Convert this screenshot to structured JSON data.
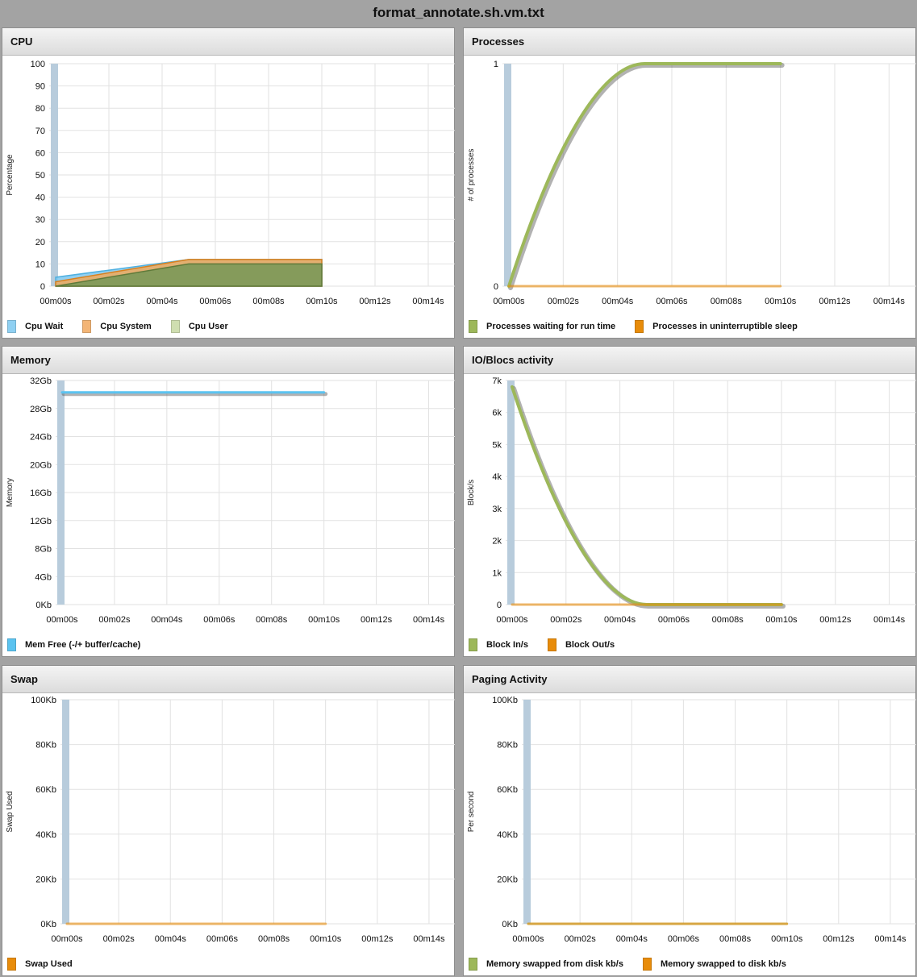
{
  "window": {
    "title": "format_annotate.sh.vm.txt"
  },
  "colors": {
    "cpu_wait": "#7ec8f0",
    "cpu_system": "#f0a95a",
    "cpu_user": "#c2d6a0",
    "green": "#9db85a",
    "orange": "#e88c0a",
    "blue": "#5bc3f0",
    "start_bar": "#b8ccdc"
  },
  "chart_data": [
    {
      "type": "area",
      "title": "CPU",
      "ylabel": "Percentage",
      "xlabel": "",
      "ylim": [
        0,
        100
      ],
      "yticks": [
        "0",
        "10",
        "20",
        "30",
        "40",
        "50",
        "60",
        "70",
        "80",
        "90",
        "100"
      ],
      "xticks": [
        "00m00s",
        "00m02s",
        "00m04s",
        "00m06s",
        "00m08s",
        "00m10s",
        "00m12s",
        "00m14s"
      ],
      "x": [
        0,
        5,
        10
      ],
      "series": [
        {
          "name": "Cpu Wait",
          "values": [
            4,
            12,
            12
          ]
        },
        {
          "name": "Cpu System",
          "values": [
            2,
            12,
            12
          ]
        },
        {
          "name": "Cpu User",
          "values": [
            0,
            10,
            10
          ]
        }
      ],
      "start_marker": 100,
      "grid": true,
      "legend": "bottom"
    },
    {
      "type": "line",
      "title": "Processes",
      "ylabel": "# of processes",
      "xlabel": "",
      "ylim": [
        0,
        1
      ],
      "yticks": [
        "0",
        "1"
      ],
      "xticks": [
        "00m00s",
        "00m02s",
        "00m04s",
        "00m06s",
        "00m08s",
        "00m10s",
        "00m12s",
        "00m14s"
      ],
      "x": [
        0,
        5,
        10
      ],
      "series": [
        {
          "name": "Processes waiting for run time",
          "values": [
            0,
            1,
            1
          ]
        },
        {
          "name": "Processes in uninterruptible sleep",
          "values": [
            0,
            0,
            0
          ]
        }
      ],
      "start_marker": 1,
      "grid": true,
      "legend": "bottom"
    },
    {
      "type": "line",
      "title": "Memory",
      "ylabel": "Memory",
      "xlabel": "",
      "ylim": [
        0,
        32
      ],
      "yticks": [
        "0Kb",
        "4Gb",
        "8Gb",
        "12Gb",
        "16Gb",
        "20Gb",
        "24Gb",
        "28Gb",
        "32Gb"
      ],
      "xticks": [
        "00m00s",
        "00m02s",
        "00m04s",
        "00m06s",
        "00m08s",
        "00m10s",
        "00m12s",
        "00m14s"
      ],
      "x": [
        0,
        10
      ],
      "series": [
        {
          "name": "Mem Free (-/+ buffer/cache)",
          "values": [
            30.3,
            30.3
          ]
        }
      ],
      "start_marker": 32,
      "grid": true,
      "legend": "bottom"
    },
    {
      "type": "line",
      "title": "IO/Blocs activity",
      "ylabel": "Block/s",
      "xlabel": "",
      "ylim": [
        0,
        7000
      ],
      "yticks": [
        "0",
        "1k",
        "2k",
        "3k",
        "4k",
        "5k",
        "6k",
        "7k"
      ],
      "xticks": [
        "00m00s",
        "00m02s",
        "00m04s",
        "00m06s",
        "00m08s",
        "00m10s",
        "00m12s",
        "00m14s"
      ],
      "x": [
        0,
        5,
        10
      ],
      "series": [
        {
          "name": "Block In/s",
          "values": [
            6800,
            0,
            0
          ]
        },
        {
          "name": "Block Out/s",
          "values": [
            0,
            0,
            0
          ]
        }
      ],
      "start_marker": 7000,
      "grid": true,
      "legend": "bottom"
    },
    {
      "type": "line",
      "title": "Swap",
      "ylabel": "Swap Used",
      "xlabel": "",
      "ylim": [
        0,
        100
      ],
      "yticks": [
        "0Kb",
        "20Kb",
        "40Kb",
        "60Kb",
        "80Kb",
        "100Kb"
      ],
      "xticks": [
        "00m00s",
        "00m02s",
        "00m04s",
        "00m06s",
        "00m08s",
        "00m10s",
        "00m12s",
        "00m14s"
      ],
      "x": [
        0,
        10
      ],
      "series": [
        {
          "name": "Swap Used",
          "values": [
            0,
            0
          ]
        }
      ],
      "start_marker": 100,
      "grid": true,
      "legend": "bottom"
    },
    {
      "type": "line",
      "title": "Paging Activity",
      "ylabel": "Per second",
      "xlabel": "",
      "ylim": [
        0,
        100
      ],
      "yticks": [
        "0Kb",
        "20Kb",
        "40Kb",
        "60Kb",
        "80Kb",
        "100Kb"
      ],
      "xticks": [
        "00m00s",
        "00m02s",
        "00m04s",
        "00m06s",
        "00m08s",
        "00m10s",
        "00m12s",
        "00m14s"
      ],
      "x": [
        0,
        10
      ],
      "series": [
        {
          "name": "Memory swapped from disk kb/s",
          "values": [
            0,
            0
          ]
        },
        {
          "name": "Memory swapped to disk kb/s",
          "values": [
            0,
            0
          ]
        }
      ],
      "start_marker": 100,
      "grid": true,
      "legend": "bottom"
    }
  ]
}
